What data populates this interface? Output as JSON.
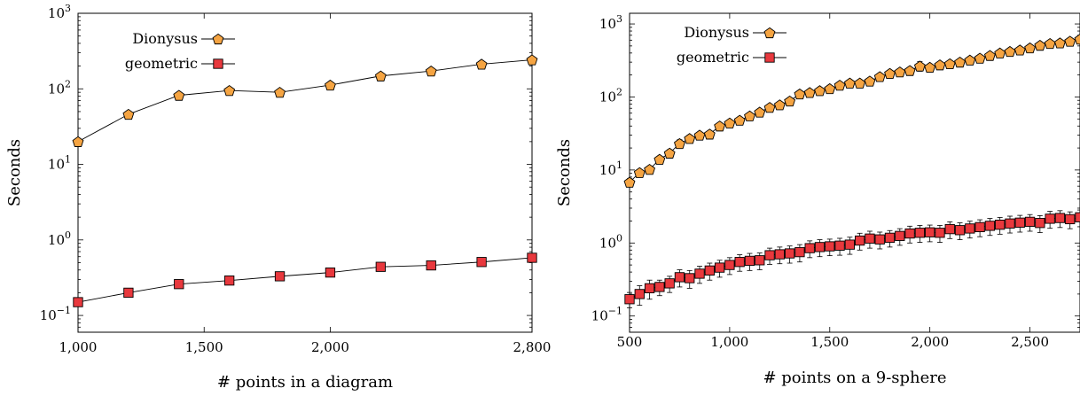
{
  "chart_data": [
    {
      "type": "line",
      "yscale": "log",
      "xlim": [
        1000,
        2800
      ],
      "ylim": [
        0.06,
        1000
      ],
      "xlabel": "# points in a diagram",
      "ylabel": "Seconds",
      "x_ticks": [
        {
          "value": 1000,
          "label": "1,000"
        },
        {
          "value": 1500,
          "label": "1,500"
        },
        {
          "value": 2000,
          "label": "2,000"
        },
        {
          "value": 2800,
          "label": "2,800"
        }
      ],
      "y_ticks": [
        {
          "value": 0.1,
          "label": "10⁻¹"
        },
        {
          "value": 1,
          "label": "10⁰"
        },
        {
          "value": 10,
          "label": "10¹"
        },
        {
          "value": 100,
          "label": "10²"
        },
        {
          "value": 1000,
          "label": "10³"
        }
      ],
      "legend_position": "top-left",
      "x": [
        1000,
        1200,
        1400,
        1600,
        1800,
        2000,
        2200,
        2400,
        2600,
        2800
      ],
      "series": [
        {
          "name": "Dionysus",
          "marker": "pentagon",
          "color": "#f5a442",
          "values": [
            20,
            46,
            82,
            95,
            90,
            112,
            148,
            172,
            212,
            242
          ]
        },
        {
          "name": "geometric",
          "marker": "square",
          "color": "#e8383d",
          "values": [
            0.15,
            0.2,
            0.26,
            0.29,
            0.33,
            0.37,
            0.44,
            0.46,
            0.51,
            0.58
          ]
        }
      ]
    },
    {
      "type": "line",
      "yscale": "log",
      "xlim": [
        500,
        2750
      ],
      "ylim": [
        0.06,
        1400
      ],
      "xlabel": "# points on a 9-sphere",
      "ylabel": "Seconds",
      "x_ticks": [
        {
          "value": 500,
          "label": "500"
        },
        {
          "value": 1000,
          "label": "1,000"
        },
        {
          "value": 1500,
          "label": "1,500"
        },
        {
          "value": 2000,
          "label": "2,000"
        },
        {
          "value": 2500,
          "label": "2,500"
        }
      ],
      "y_ticks": [
        {
          "value": 0.1,
          "label": "10⁻¹"
        },
        {
          "value": 1,
          "label": "10⁰"
        },
        {
          "value": 10,
          "label": "10¹"
        },
        {
          "value": 100,
          "label": "10²"
        },
        {
          "value": 1000,
          "label": "10³"
        }
      ],
      "legend_position": "top-left",
      "x": [
        500,
        550,
        600,
        650,
        700,
        750,
        800,
        850,
        900,
        950,
        1000,
        1050,
        1100,
        1150,
        1200,
        1250,
        1300,
        1350,
        1400,
        1450,
        1500,
        1550,
        1600,
        1650,
        1700,
        1750,
        1800,
        1850,
        1900,
        1950,
        2000,
        2050,
        2100,
        2150,
        2200,
        2250,
        2300,
        2350,
        2400,
        2450,
        2500,
        2550,
        2600,
        2650,
        2700,
        2750
      ],
      "series": [
        {
          "name": "Dionysus",
          "marker": "pentagon",
          "color": "#f5a442",
          "error_bars": true,
          "values": [
            6.8,
            9.2,
            10.2,
            14,
            17,
            23,
            27,
            30,
            31,
            40,
            44,
            48,
            55,
            62,
            72,
            78,
            88,
            110,
            115,
            122,
            130,
            145,
            155,
            155,
            165,
            190,
            210,
            220,
            230,
            265,
            255,
            275,
            285,
            300,
            320,
            340,
            370,
            400,
            420,
            440,
            470,
            510,
            540,
            550,
            580,
            620
          ],
          "errors": [
            0.8,
            0.8,
            0.8,
            1.5,
            2,
            3,
            3,
            3,
            3,
            4,
            4,
            5,
            5,
            6,
            7,
            8,
            9,
            11,
            11,
            12,
            13,
            14,
            15,
            15,
            16,
            19,
            21,
            22,
            23,
            40,
            25,
            28,
            28,
            30,
            32,
            34,
            37,
            40,
            42,
            44,
            47,
            51,
            54,
            55,
            58,
            62
          ]
        },
        {
          "name": "geometric",
          "marker": "square",
          "color": "#e8383d",
          "error_bars": true,
          "values": [
            0.17,
            0.2,
            0.24,
            0.25,
            0.28,
            0.34,
            0.33,
            0.38,
            0.42,
            0.46,
            0.5,
            0.55,
            0.57,
            0.58,
            0.68,
            0.7,
            0.72,
            0.75,
            0.85,
            0.88,
            0.9,
            0.92,
            0.95,
            1.08,
            1.15,
            1.12,
            1.18,
            1.25,
            1.35,
            1.38,
            1.4,
            1.38,
            1.55,
            1.5,
            1.58,
            1.65,
            1.72,
            1.78,
            1.85,
            1.9,
            1.95,
            1.88,
            2.15,
            2.2,
            2.12,
            2.25
          ],
          "errors": [
            0.04,
            0.06,
            0.07,
            0.06,
            0.07,
            0.09,
            0.09,
            0.1,
            0.11,
            0.12,
            0.13,
            0.14,
            0.15,
            0.15,
            0.17,
            0.18,
            0.19,
            0.2,
            0.22,
            0.23,
            0.23,
            0.24,
            0.25,
            0.28,
            0.3,
            0.29,
            0.3,
            0.32,
            0.35,
            0.36,
            0.36,
            0.36,
            0.4,
            0.39,
            0.41,
            0.43,
            0.45,
            0.46,
            0.48,
            0.49,
            0.5,
            0.49,
            0.56,
            0.57,
            0.55,
            0.58
          ]
        }
      ]
    }
  ]
}
